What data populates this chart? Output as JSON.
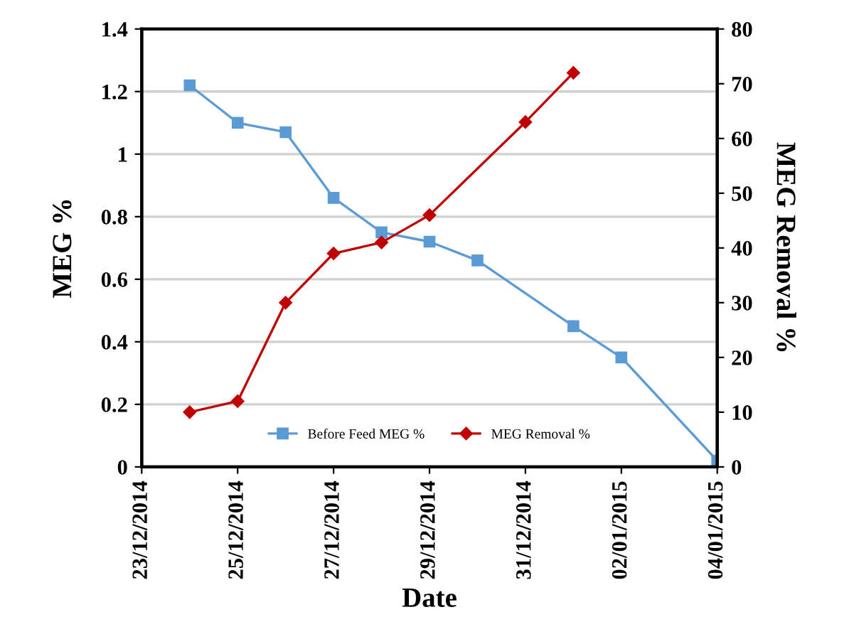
{
  "chart_data": {
    "type": "line",
    "xlabel": "Date",
    "ylabel": "MEG %",
    "y2label": "MEG Removal %",
    "xlim": [
      "2014-12-23",
      "2015-01-04"
    ],
    "xticks": [
      {
        "value": "2014-12-23",
        "label": "23/12/2014"
      },
      {
        "value": "2014-12-25",
        "label": "25/12/2014"
      },
      {
        "value": "2014-12-27",
        "label": "27/12/2014"
      },
      {
        "value": "2014-12-29",
        "label": "29/12/2014"
      },
      {
        "value": "2014-12-31",
        "label": "31/12/2014"
      },
      {
        "value": "2015-01-02",
        "label": "02/01/2015"
      },
      {
        "value": "2015-01-04",
        "label": "04/01/2015"
      }
    ],
    "ylim": [
      0,
      1.4
    ],
    "yticks": [
      0,
      0.2,
      0.4,
      0.6,
      0.8,
      1,
      1.2,
      1.4
    ],
    "y2lim": [
      0,
      80
    ],
    "y2ticks": [
      0,
      10,
      20,
      30,
      40,
      50,
      60,
      70,
      80
    ],
    "grid": "y",
    "legend": "bottom",
    "series": [
      {
        "name": "Before Feed MEG %",
        "color": "#5b9bd5",
        "marker": "square",
        "x": [
          "2014-12-24",
          "2014-12-25",
          "2014-12-26",
          "2014-12-27",
          "2014-12-28",
          "2014-12-29",
          "2014-12-30",
          "2015-01-01",
          "2015-01-02",
          "2015-01-04"
        ],
        "values": [
          1.22,
          1.1,
          1.07,
          0.86,
          0.75,
          0.72,
          0.66,
          0.45,
          0.35,
          0.02
        ]
      },
      {
        "name": "MEG Removal %",
        "color": "#c00000",
        "marker": "diamond",
        "axis": "y2",
        "x": [
          "2014-12-24",
          "2014-12-25",
          "2014-12-26",
          "2014-12-27",
          "2014-12-28",
          "2014-12-29",
          "2014-12-31",
          "2015-01-01"
        ],
        "values": [
          10,
          12,
          30,
          39,
          41,
          46,
          63,
          72
        ]
      }
    ]
  }
}
